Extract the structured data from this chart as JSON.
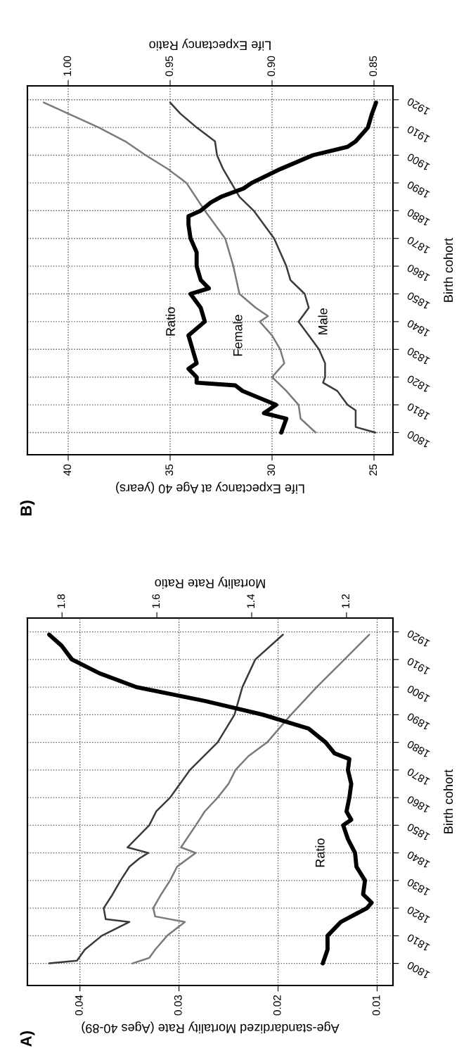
{
  "chart_data": [
    {
      "type": "line",
      "title": "A)",
      "ylabel": "Birth cohort",
      "xlabel": "Age-standardized Mortality Rate (Ages 40-89)",
      "x2label": "Mortality Rate Ratio",
      "ylim": [
        1792,
        1925
      ],
      "yticks": [
        1800,
        1810,
        1820,
        1830,
        1840,
        1850,
        1860,
        1870,
        1880,
        1890,
        1900,
        1910,
        1920
      ],
      "xlim": [
        0.0453,
        0.0084
      ],
      "xticks": [
        0.01,
        0.02,
        0.03,
        0.04
      ],
      "x2lim": [
        1.873,
        1.102
      ],
      "x2ticks": [
        {
          "value": 1.2,
          "label": "1.2"
        },
        {
          "value": 1.4,
          "label": "1.4"
        },
        {
          "value": 1.6,
          "label": "1.6"
        },
        {
          "value": 1.8,
          "label": "1.8"
        }
      ],
      "grid": true,
      "line_style": "solid",
      "series": [
        {
          "color": "#3a3a3a",
          "values": [
            1800,
            1801,
            1805,
            1810,
            1815,
            1816,
            1820,
            1825,
            1830,
            1835,
            1838,
            1840,
            1842,
            1850,
            1855,
            1860,
            1870,
            1880,
            1890,
            1900,
            1910,
            1919
          ],
          "x": [
            0.0431,
            0.0403,
            0.0395,
            0.0378,
            0.035,
            0.0374,
            0.0376,
            0.0367,
            0.0359,
            0.035,
            0.034,
            0.0331,
            0.0352,
            0.033,
            0.0323,
            0.0309,
            0.0289,
            0.0261,
            0.0244,
            0.0236,
            0.0223,
            0.0195
          ]
        },
        {
          "color": "#7a7a7a",
          "values": [
            1800,
            1802,
            1805,
            1810,
            1815,
            1817,
            1820,
            1825,
            1830,
            1835,
            1840,
            1842,
            1850,
            1855,
            1860,
            1865,
            1870,
            1875,
            1880,
            1890,
            1900,
            1910,
            1919
          ],
          "x": [
            0.0347,
            0.033,
            0.0324,
            0.0312,
            0.0294,
            0.0324,
            0.0326,
            0.0318,
            0.0309,
            0.0302,
            0.0283,
            0.0298,
            0.0283,
            0.0274,
            0.0261,
            0.025,
            0.0243,
            0.023,
            0.0211,
            0.0187,
            0.0161,
            0.0133,
            0.0108
          ]
        },
        {
          "color": "#000000",
          "axis": "x2",
          "values": [
            1800,
            1805,
            1810,
            1815,
            1820,
            1822,
            1825,
            1830,
            1835,
            1840,
            1845,
            1850,
            1852,
            1855,
            1860,
            1865,
            1870,
            1874,
            1876,
            1880,
            1885,
            1890,
            1895,
            1900,
            1905,
            1910,
            1915,
            1919
          ],
          "x": [
            1.25,
            1.24,
            1.24,
            1.212,
            1.157,
            1.147,
            1.165,
            1.161,
            1.179,
            1.182,
            1.197,
            1.207,
            1.19,
            1.2,
            1.194,
            1.19,
            1.197,
            1.194,
            1.225,
            1.244,
            1.28,
            1.376,
            1.499,
            1.643,
            1.721,
            1.779,
            1.801,
            1.827
          ]
        }
      ],
      "annotations": [
        {
          "text": "Ratio",
          "x": 0.0123,
          "y": 1840
        }
      ]
    },
    {
      "type": "line",
      "title": "B)",
      "ylabel": "Birth cohort",
      "xlabel": "Life Expectancy at Age 40 (years)",
      "x2label": "Life Expectancy Ratio",
      "ylim": [
        1792,
        1925
      ],
      "yticks": [
        1800,
        1810,
        1820,
        1830,
        1840,
        1850,
        1860,
        1870,
        1880,
        1890,
        1900,
        1910,
        1920
      ],
      "xlim": [
        42.0,
        24.07
      ],
      "xticks": [
        25,
        30,
        35,
        40
      ],
      "x2lim": [
        1.02,
        0.8407
      ],
      "x2ticks": [
        {
          "value": 0.85,
          "label": "0.85"
        },
        {
          "value": 0.9,
          "label": "0.90"
        },
        {
          "value": 0.95,
          "label": "0.95"
        },
        {
          "value": 1.0,
          "label": "1.00"
        }
      ],
      "grid": true,
      "line_style": "solid",
      "series": [
        {
          "color": "#7a7a7a",
          "values": [
            1800,
            1805,
            1810,
            1815,
            1820,
            1825,
            1830,
            1835,
            1840,
            1842,
            1845,
            1850,
            1860,
            1870,
            1880,
            1890,
            1895,
            1900,
            1905,
            1910,
            1915,
            1919
          ],
          "x": [
            27.86,
            28.6,
            28.7,
            29.3,
            30.0,
            29.4,
            29.6,
            30.0,
            30.6,
            30.2,
            30.8,
            31.6,
            31.9,
            32.3,
            33.3,
            34.2,
            35.1,
            36.2,
            37.2,
            38.5,
            40.0,
            41.2
          ]
        },
        {
          "color": "#3a3a3a",
          "values": [
            1800,
            1802,
            1808,
            1810,
            1815,
            1818,
            1820,
            1825,
            1830,
            1835,
            1840,
            1845,
            1850,
            1855,
            1860,
            1870,
            1875,
            1880,
            1885,
            1890,
            1895,
            1900,
            1905,
            1910,
            1915,
            1919
          ],
          "x": [
            24.93,
            25.9,
            25.9,
            26.3,
            26.8,
            27.5,
            27.4,
            27.4,
            27.7,
            28.2,
            28.7,
            28.2,
            28.4,
            29.1,
            29.3,
            29.9,
            30.4,
            30.9,
            31.6,
            32.0,
            32.4,
            32.7,
            32.8,
            33.7,
            34.5,
            35.0
          ]
        },
        {
          "color": "#000000",
          "axis": "x2",
          "values": [
            1800,
            1805,
            1807,
            1810,
            1815,
            1817,
            1818,
            1820,
            1823,
            1825,
            1830,
            1835,
            1840,
            1845,
            1850,
            1852,
            1855,
            1860,
            1865,
            1870,
            1875,
            1878,
            1880,
            1883,
            1885,
            1888,
            1890,
            1895,
            1900,
            1903,
            1905,
            1910,
            1915,
            1919
          ],
          "x": [
            0.8955,
            0.893,
            0.904,
            0.898,
            0.9145,
            0.918,
            0.937,
            0.937,
            0.941,
            0.937,
            0.939,
            0.941,
            0.933,
            0.935,
            0.94,
            0.931,
            0.935,
            0.937,
            0.937,
            0.94,
            0.941,
            0.941,
            0.935,
            0.93,
            0.925,
            0.914,
            0.91,
            0.896,
            0.88,
            0.863,
            0.859,
            0.853,
            0.851,
            0.849
          ]
        }
      ],
      "annotations": [
        {
          "text": "Ratio",
          "x": 33.3,
          "y": 1840
        },
        {
          "text": "Female",
          "x": 30.0,
          "y": 1835
        },
        {
          "text": "Male",
          "x": 28.7,
          "y": 1840
        }
      ]
    }
  ]
}
